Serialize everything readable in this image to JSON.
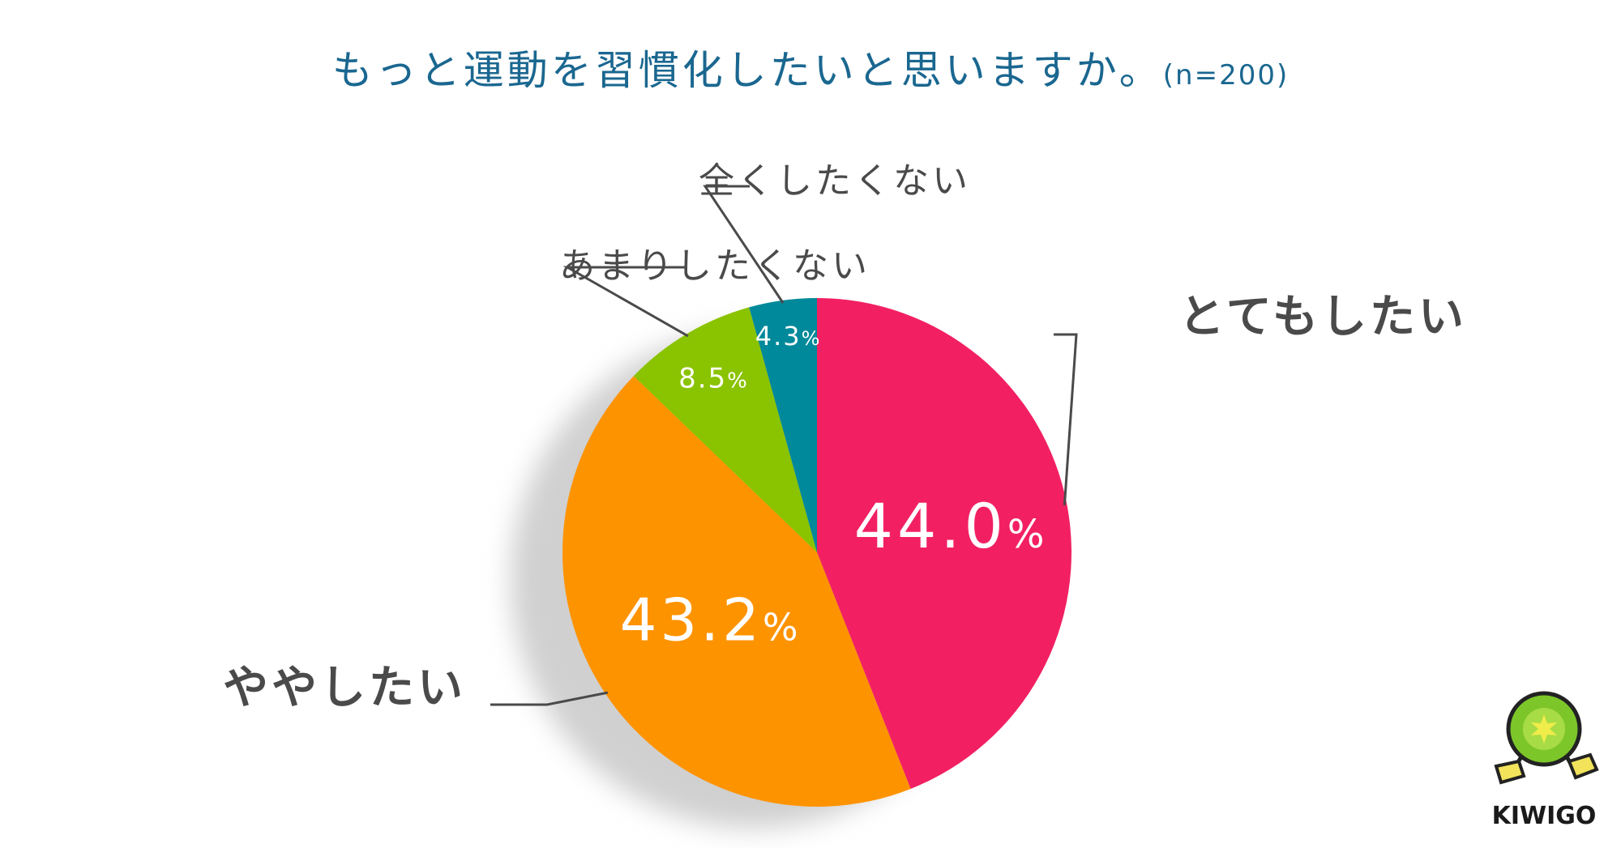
{
  "chart_data": {
    "type": "pie",
    "title": "もっと運動を習慣化したいと思いますか。",
    "subtitle": "(n=200)",
    "unit": "%",
    "slices": [
      {
        "label": "とてもしたい",
        "value": 44.0,
        "color": "#f22063"
      },
      {
        "label": "ややしたい",
        "value": 43.2,
        "color": "#fe9300"
      },
      {
        "label": "あまりしたくない",
        "value": 8.5,
        "color": "#8ac300"
      },
      {
        "label": "全くしたくない",
        "value": 4.3,
        "color": "#00899a"
      }
    ]
  },
  "logo": {
    "text": "KIWIGO",
    "icon": "kiwi-mascot-icon"
  }
}
